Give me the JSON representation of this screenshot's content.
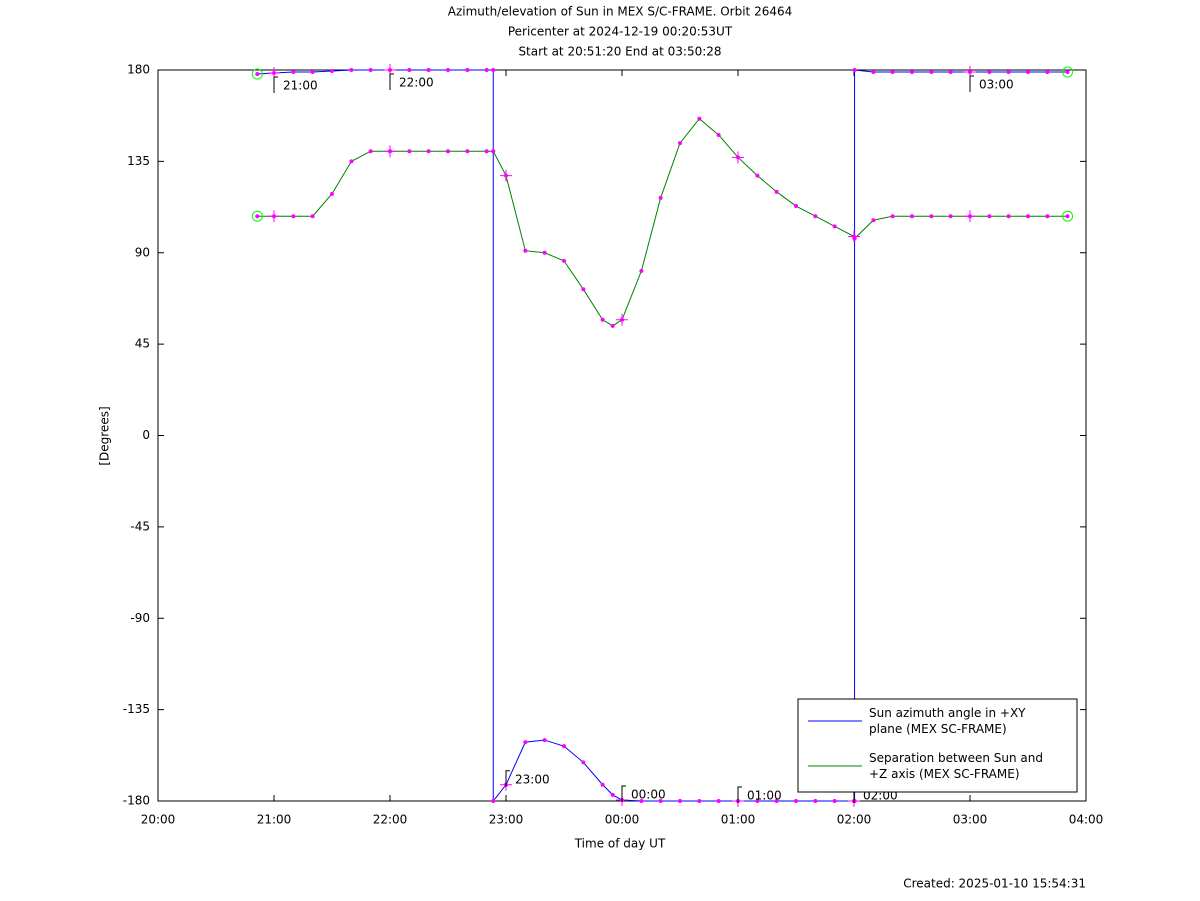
{
  "chart_data": {
    "type": "line",
    "title": "Azimuth/elevation of Sun in MEX S/C-FRAME.  Orbit 26464",
    "subtitle": "Pericenter at 2024-12-19 00:20:53UT",
    "subtitle2": "Start at 20:51:20 End at 03:50:28",
    "x_label": "Time of day UT",
    "y_label": "[Degrees]",
    "footer": "Created: 2025-01-10 15:54:31",
    "legend": "lower right",
    "x": [
      20.856,
      21,
      21.167,
      21.333,
      21.5,
      21.667,
      21.833,
      22,
      22.167,
      22.333,
      22.5,
      22.667,
      22.833,
      22.89,
      22.89,
      23,
      23.167,
      23.333,
      23.5,
      23.667,
      23.833,
      23.92,
      24,
      24.167,
      24.333,
      24.5,
      24.667,
      24.833,
      25,
      25.167,
      25.333,
      25.5,
      25.667,
      25.833,
      26,
      26.005,
      26.005,
      26.167,
      26.333,
      26.5,
      26.667,
      26.833,
      27,
      27.167,
      27.333,
      27.5,
      27.667,
      27.841
    ],
    "series": [
      {
        "name": "Sun azimuth angle in +XY plane (MEX SC-FRAME)",
        "color": "#0000ff",
        "values": [
          178,
          178.5,
          179,
          179,
          179.5,
          180,
          180,
          180,
          180,
          180,
          180,
          180,
          180,
          180,
          -180,
          -172,
          -151,
          -150,
          -153,
          -161,
          -172,
          -177,
          -179.5,
          -180,
          -180,
          -180,
          -180,
          -180,
          -180,
          -180,
          -180,
          -180,
          -180,
          -180,
          -180,
          -180,
          180,
          179,
          179,
          179,
          179,
          179,
          179,
          179,
          179,
          179,
          179,
          179
        ]
      },
      {
        "name": "Separation between Sun and +Z axis (MEX SC-FRAME)",
        "color": "#008000",
        "values": [
          108,
          108,
          108,
          108,
          119,
          135,
          140,
          140,
          140,
          140,
          140,
          140,
          140,
          140,
          140,
          128,
          91,
          90,
          86,
          72,
          57,
          54,
          57,
          81,
          117,
          144,
          156,
          148,
          137,
          128,
          120,
          113,
          108,
          103,
          98,
          97,
          97,
          106,
          108,
          108,
          108,
          108,
          108,
          108,
          108,
          108,
          108,
          108
        ]
      }
    ],
    "marker_color": "#ff00ff",
    "annotations": [
      {
        "label": "21:00",
        "x": 21,
        "y": 178.5
      },
      {
        "label": "22:00",
        "x": 22,
        "y": 180
      },
      {
        "label": "23:00",
        "x": 23,
        "y": -172
      },
      {
        "label": "00:00",
        "x": 24,
        "y": -179.5
      },
      {
        "label": "01:00",
        "x": 25,
        "y": -180
      },
      {
        "label": "02:00",
        "x": 26,
        "y": -180
      },
      {
        "label": "03:00",
        "x": 27,
        "y": 179
      }
    ],
    "xlim": [
      20,
      28
    ],
    "xticks": [
      {
        "value": 20,
        "label": "20:00"
      },
      {
        "value": 21,
        "label": "21:00"
      },
      {
        "value": 22,
        "label": "22:00"
      },
      {
        "value": 23,
        "label": "23:00"
      },
      {
        "value": 24,
        "label": "00:00"
      },
      {
        "value": 25,
        "label": "01:00"
      },
      {
        "value": 26,
        "label": "02:00"
      },
      {
        "value": 27,
        "label": "03:00"
      },
      {
        "value": 28,
        "label": "04:00"
      }
    ],
    "ylim": [
      -180,
      180
    ],
    "yticks": [
      180,
      135,
      90,
      45,
      0,
      -45,
      -90,
      -135,
      -180
    ],
    "grid": false
  }
}
